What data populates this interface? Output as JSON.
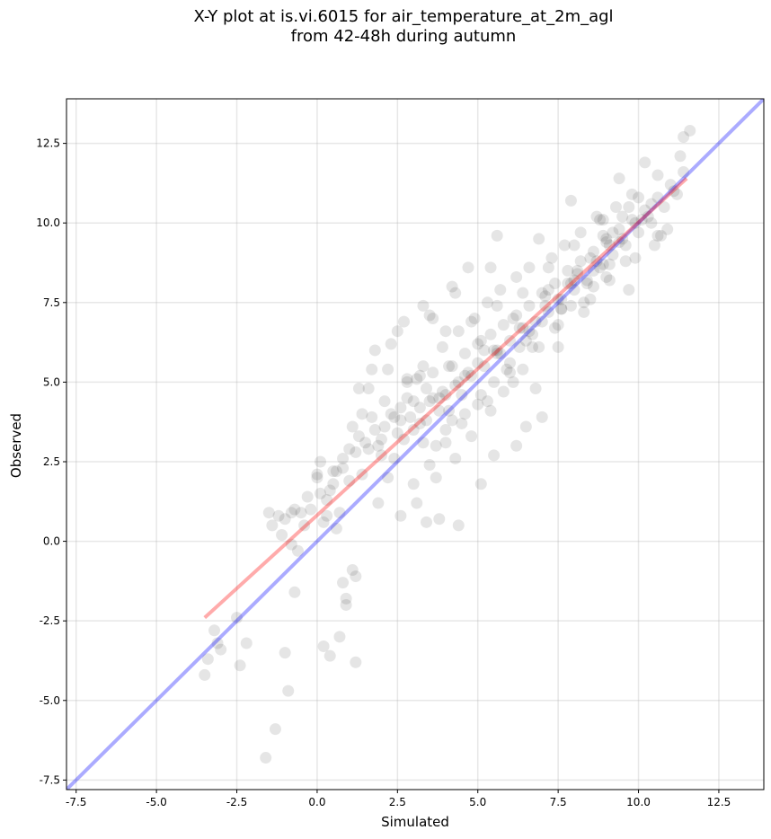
{
  "chart_data": {
    "type": "scatter",
    "title_line1": "X-Y plot at is.vi.6015 for air_temperature_at_2m_agl",
    "title_line2": "from 42-48h during autumn",
    "xlabel": "Simulated",
    "ylabel": "Observed",
    "xlim": [
      -7.8,
      13.9
    ],
    "ylim": [
      -7.8,
      13.9
    ],
    "xticks": [
      "-7.5",
      "-5.0",
      "-2.5",
      "0.0",
      "2.5",
      "5.0",
      "7.5",
      "10.0",
      "12.5"
    ],
    "yticks": [
      "-7.5",
      "-5.0",
      "-2.5",
      "0.0",
      "2.5",
      "5.0",
      "7.5",
      "10.0",
      "12.5"
    ],
    "xtick_values": [
      -7.5,
      -5,
      -2.5,
      0,
      2.5,
      5,
      7.5,
      10,
      12.5
    ],
    "ytick_values": [
      -7.5,
      -5,
      -2.5,
      0,
      2.5,
      5,
      7.5,
      10,
      12.5
    ],
    "grid": true,
    "point_color": "#000000",
    "point_opacity": 0.1,
    "points": {
      "x": [
        -1.6,
        -1.3,
        -0.9,
        -1.0,
        -0.7,
        0.2,
        0.4,
        0.7,
        0.9,
        1.2,
        1.1,
        0.9,
        0.8,
        1.2,
        -3.4,
        -3.5,
        -3.2,
        -3.1,
        -3.0,
        -2.4,
        -2.2,
        -2.5,
        -1.5,
        -1.2,
        -1.0,
        -0.8,
        -0.6,
        -0.4,
        -0.2,
        0.0,
        0.3,
        0.5,
        0.6,
        0.8,
        1.0,
        1.3,
        1.5,
        1.7,
        1.9,
        2.1,
        2.3,
        2.5,
        2.7,
        2.8,
        3.0,
        3.2,
        3.4,
        3.5,
        3.7,
        3.9,
        4.0,
        4.1,
        4.3,
        4.5,
        -0.7,
        -0.5,
        0.0,
        0.1,
        0.2,
        0.4,
        0.6,
        0.8,
        1.0,
        1.2,
        1.4,
        1.6,
        1.8,
        2.0,
        2.2,
        2.4,
        2.6,
        2.8,
        3.0,
        3.2,
        3.4,
        3.6,
        3.8,
        4.0,
        4.2,
        4.4,
        4.6,
        4.8,
        5.0,
        5.2,
        5.4,
        5.6,
        5.8,
        6.0,
        6.2,
        6.4,
        6.6,
        6.8,
        7.0,
        7.2,
        7.4,
        7.6,
        7.8,
        8.0,
        8.2,
        8.4,
        8.6,
        8.8,
        9.0,
        9.2,
        9.4,
        9.6,
        9.8,
        10.0,
        10.2,
        10.4,
        10.6,
        10.8,
        11.0,
        11.2,
        11.4,
        -1.4,
        -1.1,
        -0.8,
        -0.3,
        0.1,
        0.5,
        1.1,
        1.6,
        2.1,
        2.6,
        3.1,
        3.6,
        4.1,
        4.6,
        5.1,
        5.6,
        6.1,
        6.6,
        7.1,
        7.6,
        8.1,
        8.6,
        9.1,
        9.6,
        10.1,
        10.6,
        11.1,
        2.0,
        2.4,
        2.9,
        3.3,
        3.8,
        4.2,
        4.7,
        5.1,
        5.5,
        5.9,
        6.3,
        6.7,
        7.1,
        7.5,
        7.9,
        8.3,
        8.7,
        9.1,
        9.5,
        9.9,
        10.3,
        10.7,
        3.0,
        3.5,
        4.0,
        4.5,
        5.0,
        5.5,
        6.0,
        6.5,
        7.0,
        7.5,
        8.0,
        8.5,
        9.0,
        9.5,
        10.0,
        3.2,
        3.9,
        4.4,
        4.9,
        5.3,
        5.7,
        6.2,
        6.6,
        7.3,
        7.7,
        8.2,
        8.8,
        9.3,
        9.8,
        2.6,
        3.1,
        3.7,
        4.3,
        4.8,
        5.4,
        5.8,
        6.4,
        6.9,
        7.4,
        7.9,
        8.4,
        8.9,
        9.4,
        9.9,
        10.4,
        1.8,
        2.2,
        2.5,
        3.3,
        3.6,
        4.2,
        4.7,
        5.2,
        5.6,
        6.1,
        6.5,
        7.0,
        7.8,
        8.6,
        9.0,
        9.7,
        10.5,
        10.9,
        11.3,
        11.6,
        4.6,
        5.0,
        5.3,
        5.7,
        6.0,
        6.3,
        6.7,
        7.2,
        7.6,
        8.1,
        8.5,
        8.9,
        9.2,
        3.4,
        3.8,
        4.4,
        5.1,
        5.5,
        6.2,
        6.8,
        7.5,
        8.3,
        9.1,
        1.3,
        1.7,
        2.3,
        2.7,
        3.5,
        4.3,
        5.4,
        6.9,
        7.9,
        8.7,
        9.4,
        10.2,
        0.3,
        0.7,
        1.4,
        1.9,
        2.8,
        3.3,
        4.0,
        4.8,
        5.6,
        6.4,
        7.2,
        8.0,
        8.9,
        9.7,
        10.6,
        11.4
      ],
      "y": [
        -6.8,
        -5.9,
        -4.7,
        -3.5,
        -1.6,
        -3.3,
        -3.6,
        -3.0,
        -2.0,
        -3.8,
        -0.9,
        -1.8,
        -1.3,
        -1.1,
        -3.7,
        -4.2,
        -2.8,
        -3.2,
        -3.4,
        -3.9,
        -3.2,
        -2.4,
        0.9,
        0.8,
        0.7,
        -0.1,
        -0.3,
        0.5,
        1.0,
        2.0,
        1.3,
        1.8,
        2.2,
        2.6,
        2.9,
        3.3,
        3.1,
        3.9,
        3.0,
        3.6,
        4.0,
        3.4,
        3.2,
        4.5,
        3.5,
        4.2,
        3.8,
        4.4,
        3.0,
        4.7,
        3.5,
        4.1,
        4.9,
        4.6,
        1.0,
        0.9,
        2.1,
        1.5,
        0.6,
        1.6,
        0.4,
        2.3,
        1.9,
        2.8,
        4.0,
        4.8,
        3.5,
        2.7,
        2.0,
        3.9,
        4.2,
        5.0,
        4.4,
        3.7,
        4.8,
        5.3,
        4.1,
        4.6,
        5.5,
        5.0,
        5.9,
        5.2,
        6.2,
        5.5,
        6.5,
        6.0,
        6.8,
        6.3,
        7.1,
        6.7,
        7.4,
        6.9,
        7.8,
        7.2,
        8.1,
        7.6,
        8.5,
        7.9,
        8.8,
        8.2,
        9.1,
        8.6,
        9.4,
        9.0,
        9.8,
        9.3,
        10.1,
        9.7,
        10.4,
        10.0,
        10.8,
        10.5,
        11.2,
        10.9,
        11.6,
        0.5,
        0.2,
        0.9,
        1.4,
        2.5,
        2.2,
        3.6,
        2.9,
        4.4,
        3.8,
        5.1,
        4.5,
        5.5,
        5.2,
        6.3,
        5.9,
        7.0,
        6.6,
        7.7,
        7.3,
        8.5,
        8.0,
        9.3,
        8.8,
        10.1,
        9.6,
        11.0,
        3.2,
        2.6,
        3.9,
        3.1,
        4.5,
        3.8,
        5.3,
        4.6,
        6.0,
        5.4,
        6.7,
        6.1,
        7.4,
        6.8,
        8.1,
        7.5,
        8.8,
        8.2,
        9.5,
        8.9,
        10.2,
        9.6,
        1.8,
        2.4,
        3.1,
        3.7,
        4.3,
        5.0,
        5.6,
        6.3,
        6.9,
        7.6,
        8.2,
        8.9,
        9.5,
        10.2,
        10.8,
        5.2,
        6.1,
        6.6,
        7.0,
        7.5,
        7.9,
        8.3,
        8.6,
        8.9,
        9.3,
        9.7,
        10.1,
        10.5,
        10.9,
        0.8,
        1.2,
        2.0,
        2.6,
        3.3,
        4.1,
        4.7,
        5.4,
        6.1,
        6.7,
        7.4,
        8.1,
        8.7,
        9.4,
        10.0,
        10.6,
        6.0,
        5.4,
        6.6,
        7.4,
        7.0,
        8.0,
        8.6,
        6.0,
        9.6,
        5.0,
        3.6,
        3.9,
        8.1,
        8.5,
        8.3,
        7.9,
        9.3,
        9.8,
        12.1,
        12.9,
        4.0,
        5.6,
        4.4,
        5.9,
        5.3,
        6.1,
        6.5,
        7.9,
        7.3,
        8.4,
        7.6,
        9.6,
        9.7,
        0.6,
        0.7,
        0.5,
        1.8,
        2.7,
        3.0,
        4.8,
        6.1,
        7.2,
        8.7,
        4.8,
        5.4,
        6.2,
        6.9,
        7.1,
        7.8,
        8.6,
        9.5,
        10.7,
        10.2,
        11.4,
        11.9,
        0.8,
        0.9,
        2.1,
        1.2,
        5.1,
        5.5,
        6.6,
        6.9,
        7.4,
        7.8,
        8.6,
        9.3,
        10.1,
        10.5,
        11.5,
        12.7
      ]
    },
    "fit_line": {
      "color": "#ff0000",
      "x": [
        -3.5,
        11.5
      ],
      "y": [
        -2.4,
        11.4
      ]
    },
    "identity_line": {
      "color": "#0000ff",
      "x": [
        -7.8,
        13.9
      ],
      "y": [
        -7.8,
        13.9
      ]
    }
  }
}
